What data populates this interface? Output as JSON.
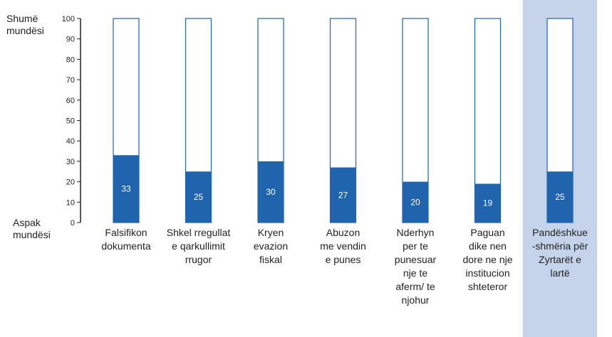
{
  "chart_data": {
    "type": "bar",
    "stacked_to": 100,
    "ylim": [
      0,
      100
    ],
    "yticks": [
      0,
      10,
      20,
      30,
      40,
      50,
      60,
      70,
      80,
      90,
      100
    ],
    "ylabel_top": "Shumë\nmundësi",
    "ylabel_bottom": "Aspak\nmundësi",
    "categories": [
      "Falsifikon\ndokumenta",
      "Shkel rregullat\ne qarkullimit\nrrugor",
      "Kryen\nevazion\nfiskal",
      "Abuzon\nme vendin\ne punes",
      "Nderhyn\nper te\npunesuar\nnje te\naferm/ te\nnjohur",
      "Paguan\ndike nen\ndore ne nje\ninstitucion\nshteteror",
      "Pandëshkue\n-shmëria për\nZyrtarët e\nlartë"
    ],
    "values": [
      33,
      25,
      30,
      27,
      20,
      19,
      25
    ],
    "highlighted_category_index": 6,
    "colors": {
      "bar_fill": "#1f64ad",
      "bar_outline": "#1f64ad",
      "highlight_band": "#c5d4ea",
      "axis": "#222222"
    }
  }
}
